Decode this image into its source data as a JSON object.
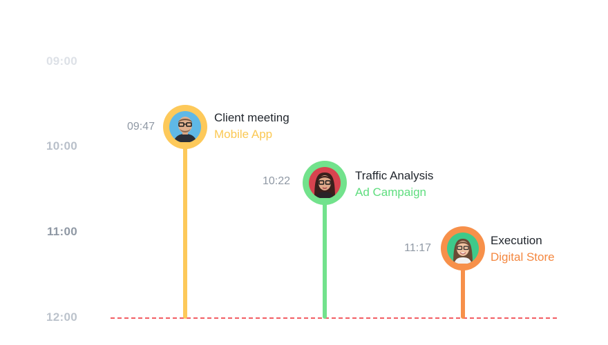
{
  "axis": {
    "labels": [
      "09:00",
      "10:00",
      "11:00",
      "12:00"
    ]
  },
  "events": [
    {
      "time": "09:47",
      "title": "Client meeting",
      "subtitle": "Mobile App",
      "color": "#fdc95a",
      "avatar": "man-with-glasses-avatar"
    },
    {
      "time": "10:22",
      "title": "Traffic Analysis",
      "subtitle": "Ad Campaign",
      "color": "#72e28c",
      "avatar": "woman-with-glasses-avatar"
    },
    {
      "time": "11:17",
      "title": "Execution",
      "subtitle": "Digital Store",
      "color": "#f7904a",
      "avatar": "woman-smiling-avatar"
    }
  ],
  "current_time_line_color": "#f25c63"
}
